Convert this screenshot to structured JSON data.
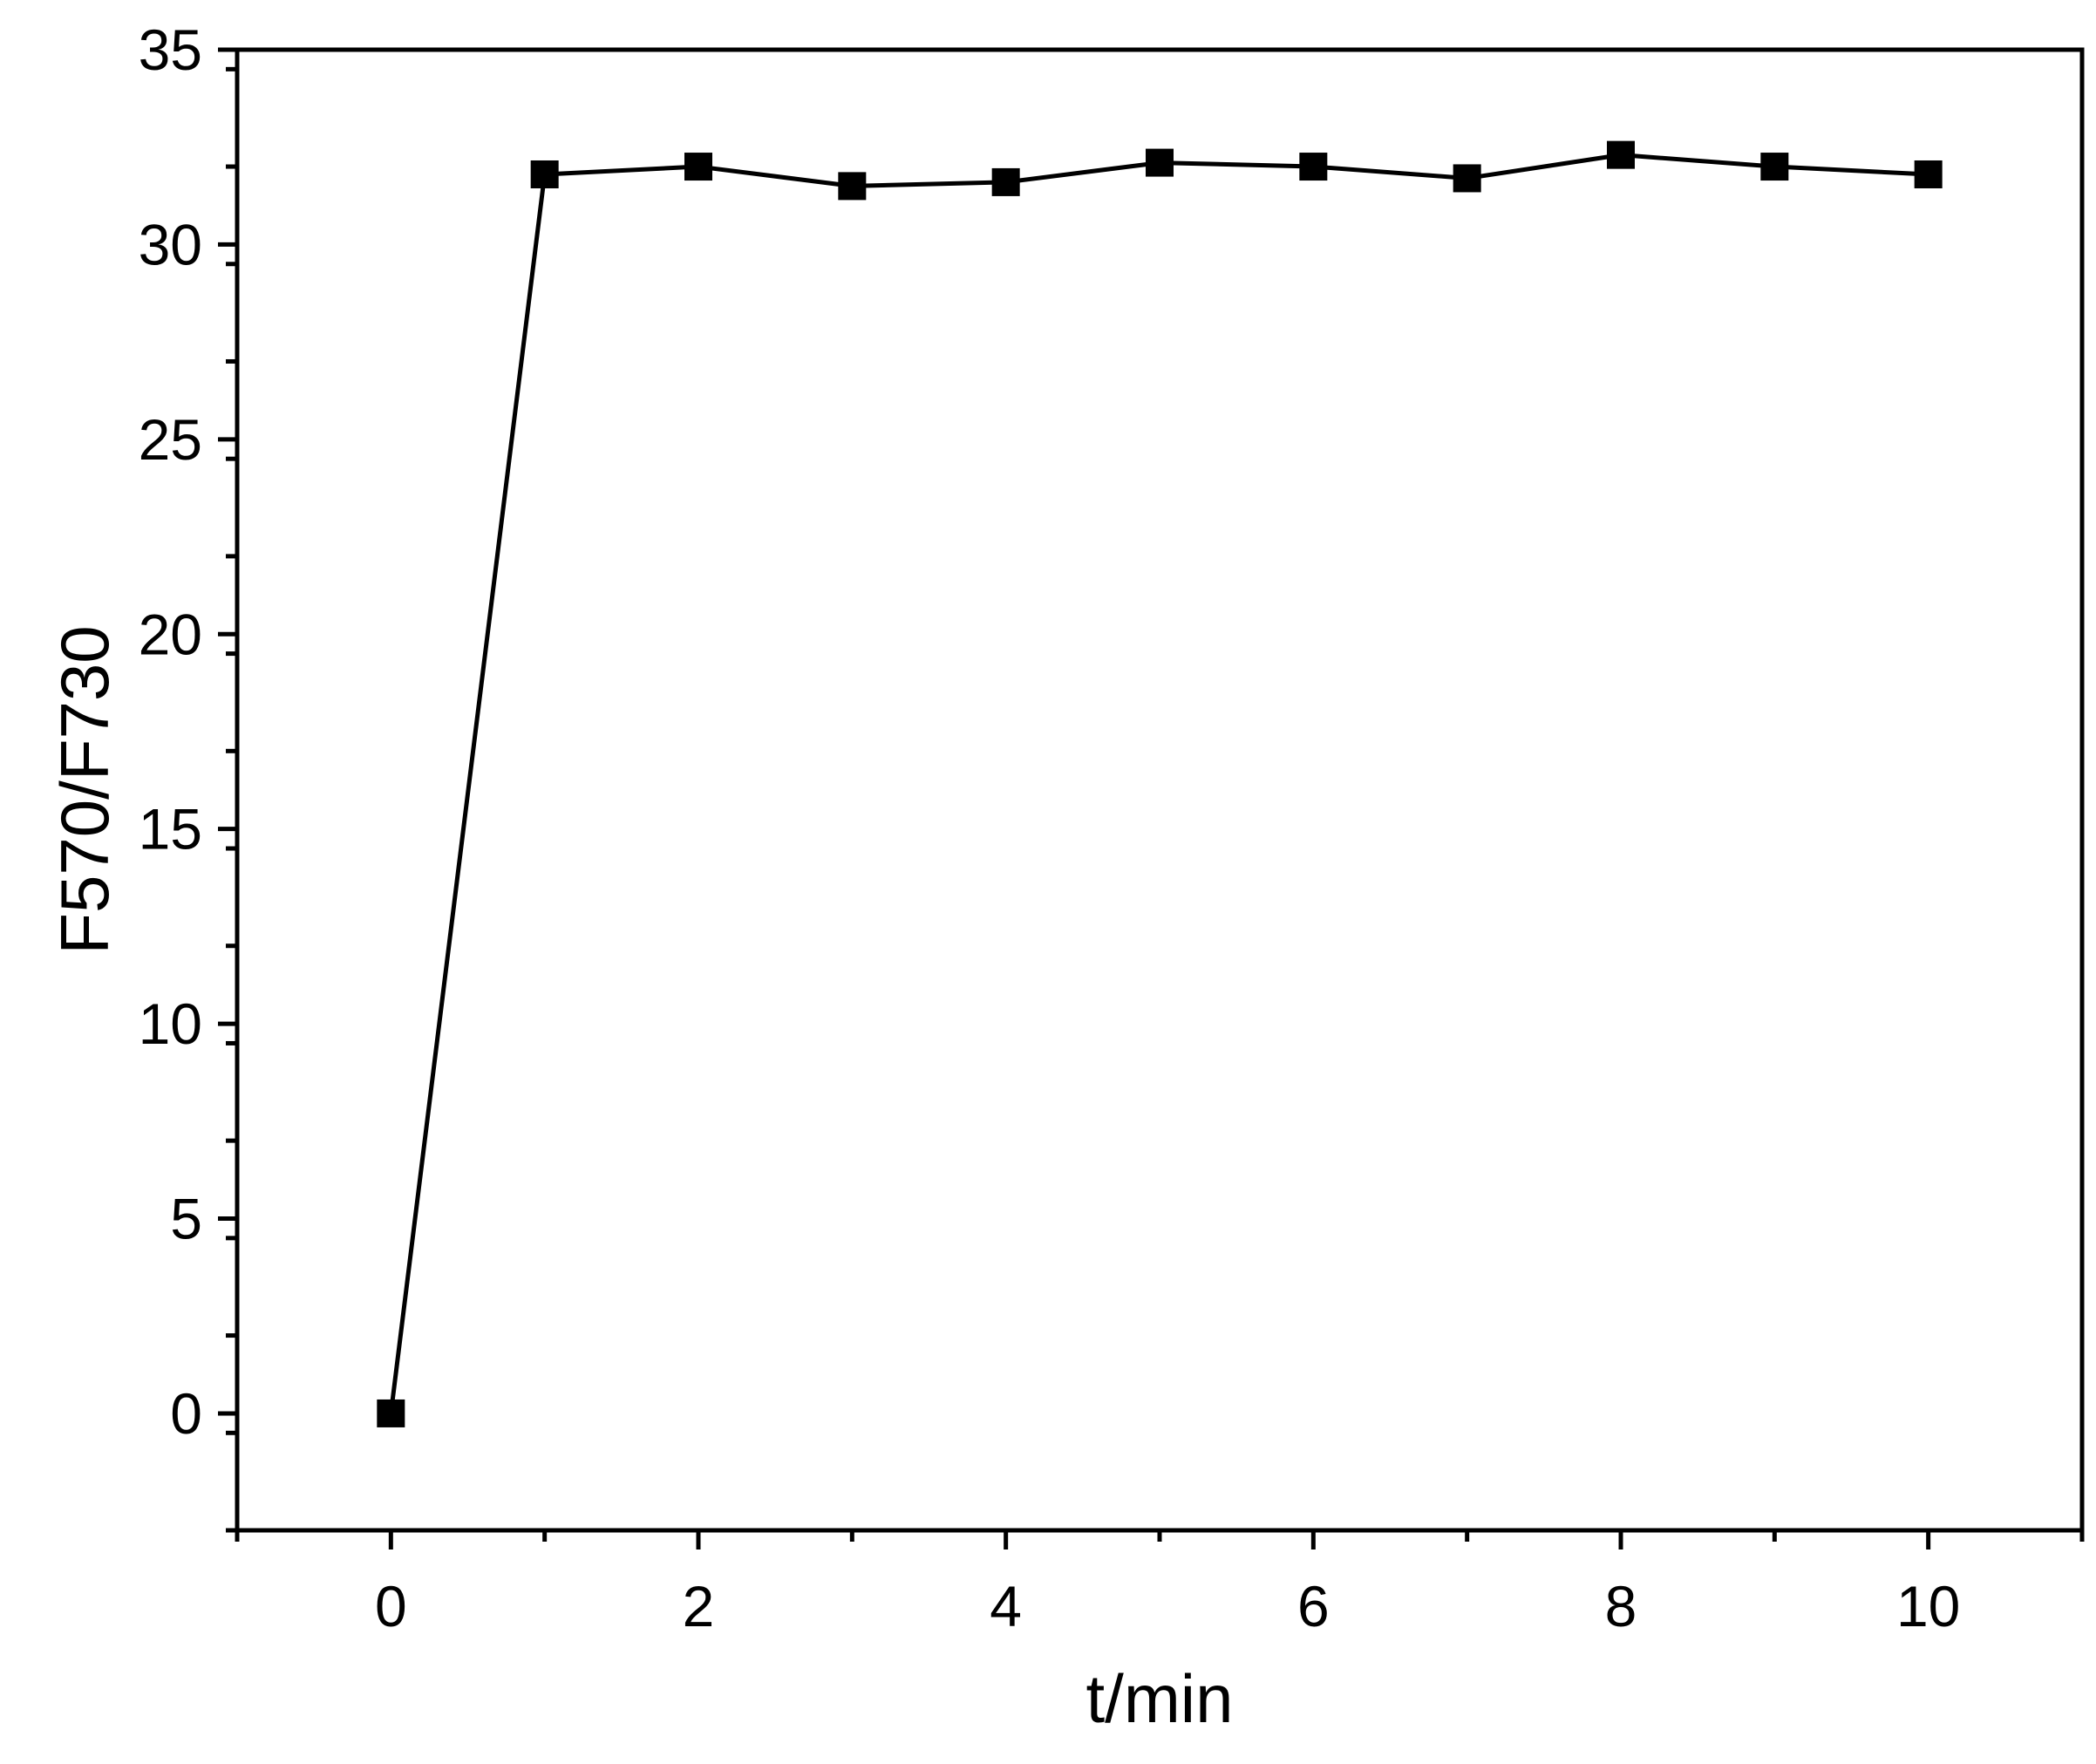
{
  "chart_data": {
    "type": "line",
    "title": "",
    "xlabel": "t/min",
    "ylabel": "F570/F730",
    "xlim": [
      -1,
      11
    ],
    "ylim": [
      -3,
      35
    ],
    "x_ticks": [
      0,
      2,
      4,
      6,
      8,
      10
    ],
    "x_minor_ticks": [
      -1,
      1,
      3,
      5,
      7,
      9,
      11
    ],
    "y_ticks": [
      0,
      5,
      10,
      15,
      20,
      25,
      30,
      35
    ],
    "y_minor_step": 2.5,
    "grid": false,
    "legend": "none",
    "marker": "square",
    "series": [
      {
        "x": [
          0,
          1,
          2,
          3,
          4,
          5,
          6,
          7,
          8,
          9,
          10
        ],
        "y": [
          0,
          31.8,
          32.0,
          31.5,
          31.6,
          32.1,
          32.0,
          31.7,
          32.3,
          32.0,
          31.8
        ]
      }
    ],
    "colors": {
      "line": "#000000",
      "marker": "#000000",
      "axis": "#000000"
    }
  }
}
